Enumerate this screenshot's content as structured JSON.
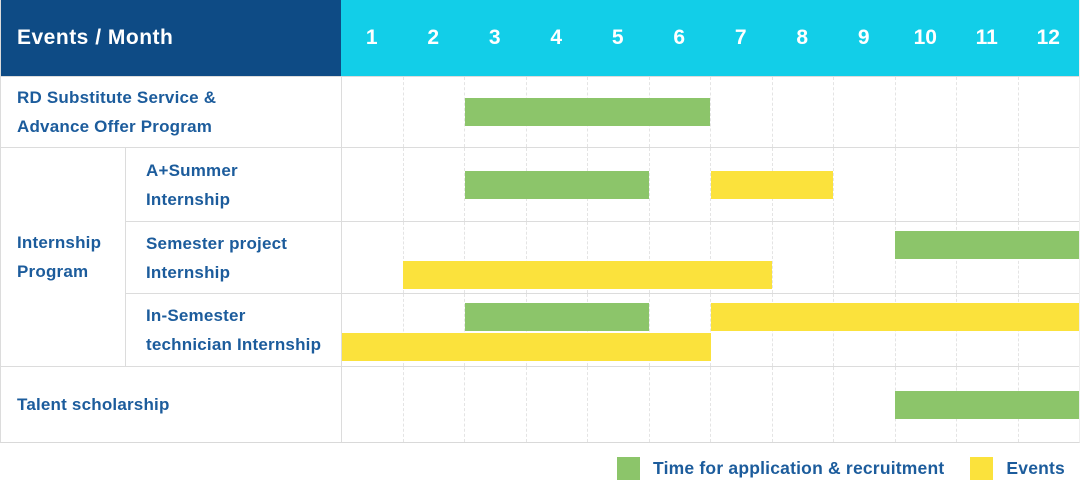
{
  "header": {
    "events_month_label": "Events / Month",
    "months": [
      "1",
      "2",
      "3",
      "4",
      "5",
      "6",
      "7",
      "8",
      "9",
      "10",
      "11",
      "12"
    ]
  },
  "colors": {
    "navy_header": "#0E4B85",
    "cyan_header": "#12CEE8",
    "green_bar": "#8CC56A",
    "yellow_bar": "#FBE23C",
    "label_text_blue": "#1C5C9C",
    "grid_line": "#DCDCDC"
  },
  "series": {
    "application": {
      "label": "Time for application & recruitment",
      "color": "#8CC56A"
    },
    "events": {
      "label": "Events",
      "color": "#FBE23C"
    }
  },
  "legend_order": [
    "application",
    "events"
  ],
  "groups": {
    "internship-program": {
      "label_lines": [
        "Internship",
        "Program"
      ]
    }
  },
  "rows": [
    {
      "id": "rd-substitute-service",
      "group": null,
      "lines": 1,
      "label_lines": [
        "RD Substitute Service &",
        "Advance Offer Program"
      ],
      "bars": [
        {
          "type": "application",
          "start": 3,
          "end": 6,
          "line": 0
        }
      ]
    },
    {
      "id": "a-plus-summer-internship",
      "group": "internship-program",
      "lines": 1,
      "label_lines": [
        "A+Summer",
        "Internship"
      ],
      "bars": [
        {
          "type": "application",
          "start": 3,
          "end": 5,
          "line": 0
        },
        {
          "type": "events",
          "start": 7,
          "end": 8,
          "line": 0
        }
      ]
    },
    {
      "id": "semester-project-internship",
      "group": "internship-program",
      "lines": 2,
      "label_lines": [
        "Semester project",
        "Internship"
      ],
      "bars": [
        {
          "type": "application",
          "start": 10,
          "end": 12,
          "line": 0
        },
        {
          "type": "events",
          "start": 2,
          "end": 7,
          "line": 1
        }
      ]
    },
    {
      "id": "in-semester-technician-internship",
      "group": "internship-program",
      "lines": 2,
      "label_lines": [
        "In-Semester",
        "technician Internship"
      ],
      "bars": [
        {
          "type": "application",
          "start": 3,
          "end": 5,
          "line": 0
        },
        {
          "type": "events",
          "start": 7,
          "end": 12,
          "line": 0
        },
        {
          "type": "events",
          "start": 1,
          "end": 6,
          "line": 1
        }
      ]
    },
    {
      "id": "talent-scholarship",
      "group": null,
      "lines": 1,
      "label_lines": [
        "Talent scholarship"
      ],
      "bars": [
        {
          "type": "application",
          "start": 10,
          "end": 12,
          "line": 0
        }
      ]
    }
  ],
  "legend": [
    {
      "series": "application",
      "label": "Time for application & recruitment"
    },
    {
      "series": "events",
      "label": "Events"
    }
  ],
  "chart_data": {
    "type": "bar",
    "subtype": "gantt-timeline",
    "title": "Events / Month",
    "x": {
      "label": "Month",
      "ticks": [
        "1",
        "2",
        "3",
        "4",
        "5",
        "6",
        "7",
        "8",
        "9",
        "10",
        "11",
        "12"
      ],
      "range": [
        1,
        12
      ]
    },
    "grid": "vertical-dashed",
    "legend_position": "bottom-right",
    "series": [
      {
        "name": "Time for application & recruitment",
        "color": "#8CC56A",
        "segments": [
          {
            "row": "RD Substitute Service & Advance Offer Program",
            "start_month": 3,
            "end_month": 6
          },
          {
            "row": "A+Summer Internship",
            "start_month": 3,
            "end_month": 5
          },
          {
            "row": "Semester project Internship",
            "start_month": 10,
            "end_month": 12
          },
          {
            "row": "In-Semester technician Internship",
            "start_month": 3,
            "end_month": 5
          },
          {
            "row": "Talent scholarship",
            "start_month": 10,
            "end_month": 12
          }
        ]
      },
      {
        "name": "Events",
        "color": "#FBE23C",
        "segments": [
          {
            "row": "A+Summer Internship",
            "start_month": 7,
            "end_month": 8
          },
          {
            "row": "Semester project Internship",
            "start_month": 2,
            "end_month": 7
          },
          {
            "row": "In-Semester technician Internship",
            "start_month": 7,
            "end_month": 12
          },
          {
            "row": "In-Semester technician Internship",
            "start_month": 1,
            "end_month": 6
          }
        ]
      }
    ]
  }
}
